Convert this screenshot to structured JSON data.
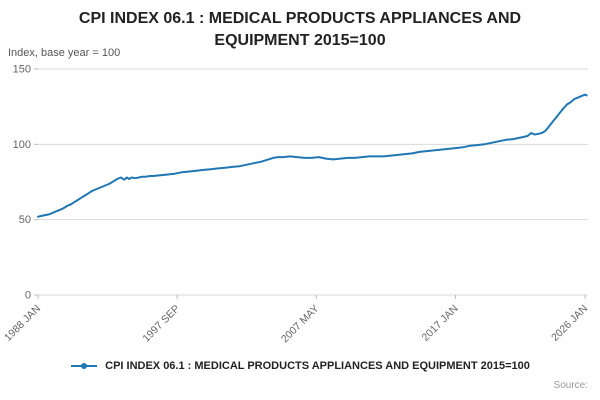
{
  "title": "CPI INDEX 06.1 : MEDICAL PRODUCTS APPLIANCES AND EQUIPMENT 2015=100",
  "axis_note": "Index, base year = 100",
  "legend_label": "CPI INDEX 06.1 : MEDICAL PRODUCTS APPLIANCES AND EQUIPMENT 2015=100",
  "source_label": "Source:",
  "colors": {
    "line": "#1f77b4",
    "grid": "#d9d9d9",
    "axis_text": "#666666",
    "title_text": "#222222"
  },
  "chart_data": {
    "type": "line",
    "title": "CPI INDEX 06.1 : MEDICAL PRODUCTS APPLIANCES AND EQUIPMENT 2015=100",
    "xlabel": "",
    "ylabel": "Index, base year = 100",
    "xlim": [
      1988.0,
      2026.2
    ],
    "ylim": [
      0,
      150
    ],
    "yticks": [
      0,
      50,
      100,
      150
    ],
    "xticks": [
      {
        "v": 1988.0,
        "label": "1988 JAN"
      },
      {
        "v": 1997.6667,
        "label": "1997 SEP"
      },
      {
        "v": 2007.3333,
        "label": "2007 MAY"
      },
      {
        "v": 2017.0,
        "label": "2017 JAN"
      },
      {
        "v": 2026.0,
        "label": "2026 JAN"
      }
    ],
    "grid": true,
    "legend_position": "bottom",
    "series": [
      {
        "name": "CPI INDEX 06.1 : MEDICAL PRODUCTS APPLIANCES AND EQUIPMENT 2015=100",
        "points": [
          [
            1988.0,
            52
          ],
          [
            1988.25,
            52.5
          ],
          [
            1988.5,
            53
          ],
          [
            1988.75,
            53.5
          ],
          [
            1989.0,
            54.5
          ],
          [
            1989.25,
            55.5
          ],
          [
            1989.5,
            56.5
          ],
          [
            1989.75,
            57.5
          ],
          [
            1990.0,
            59
          ],
          [
            1990.25,
            60
          ],
          [
            1990.5,
            61.5
          ],
          [
            1990.75,
            63
          ],
          [
            1991.0,
            64.5
          ],
          [
            1991.25,
            66
          ],
          [
            1991.5,
            67.5
          ],
          [
            1991.75,
            69
          ],
          [
            1992.0,
            70
          ],
          [
            1992.25,
            71
          ],
          [
            1992.5,
            72
          ],
          [
            1992.75,
            73
          ],
          [
            1993.0,
            74
          ],
          [
            1993.25,
            75.5
          ],
          [
            1993.5,
            77
          ],
          [
            1993.75,
            78
          ],
          [
            1994.0,
            76.5
          ],
          [
            1994.17,
            78
          ],
          [
            1994.33,
            77
          ],
          [
            1994.5,
            78
          ],
          [
            1994.75,
            77.5
          ],
          [
            1995.0,
            78
          ],
          [
            1995.25,
            78.5
          ],
          [
            1995.5,
            78.5
          ],
          [
            1995.75,
            79
          ],
          [
            1996.0,
            79
          ],
          [
            1996.5,
            79.5
          ],
          [
            1997.0,
            80
          ],
          [
            1997.5,
            80.5
          ],
          [
            1998.0,
            81.5
          ],
          [
            1998.5,
            82
          ],
          [
            1999.0,
            82.5
          ],
          [
            1999.5,
            83
          ],
          [
            2000.0,
            83.5
          ],
          [
            2000.5,
            84
          ],
          [
            2001.0,
            84.5
          ],
          [
            2001.5,
            85
          ],
          [
            2002.0,
            85.5
          ],
          [
            2002.5,
            86.5
          ],
          [
            2003.0,
            87.5
          ],
          [
            2003.5,
            88.5
          ],
          [
            2004.0,
            90
          ],
          [
            2004.33,
            91
          ],
          [
            2004.67,
            91.5
          ],
          [
            2005.0,
            91.5
          ],
          [
            2005.5,
            92
          ],
          [
            2006.0,
            91.5
          ],
          [
            2006.5,
            91
          ],
          [
            2007.0,
            91
          ],
          [
            2007.5,
            91.5
          ],
          [
            2008.0,
            90.5
          ],
          [
            2008.5,
            90
          ],
          [
            2009.0,
            90.5
          ],
          [
            2009.5,
            91
          ],
          [
            2010.0,
            91
          ],
          [
            2010.5,
            91.5
          ],
          [
            2011.0,
            92
          ],
          [
            2011.5,
            92
          ],
          [
            2012.0,
            92
          ],
          [
            2012.5,
            92.5
          ],
          [
            2013.0,
            93
          ],
          [
            2013.5,
            93.5
          ],
          [
            2014.0,
            94
          ],
          [
            2014.5,
            95
          ],
          [
            2015.0,
            95.5
          ],
          [
            2015.5,
            96
          ],
          [
            2016.0,
            96.5
          ],
          [
            2016.5,
            97
          ],
          [
            2017.0,
            97.5
          ],
          [
            2017.5,
            98
          ],
          [
            2018.0,
            99
          ],
          [
            2018.5,
            99.5
          ],
          [
            2019.0,
            100
          ],
          [
            2019.5,
            101
          ],
          [
            2020.0,
            102
          ],
          [
            2020.5,
            103
          ],
          [
            2021.0,
            103.5
          ],
          [
            2021.5,
            104.5
          ],
          [
            2022.0,
            105.5
          ],
          [
            2022.25,
            107.5
          ],
          [
            2022.5,
            106.5
          ],
          [
            2022.75,
            107
          ],
          [
            2023.0,
            107.5
          ],
          [
            2023.25,
            109
          ],
          [
            2023.5,
            112
          ],
          [
            2023.75,
            115
          ],
          [
            2024.0,
            118
          ],
          [
            2024.25,
            121
          ],
          [
            2024.5,
            124
          ],
          [
            2024.75,
            126.5
          ],
          [
            2025.0,
            128
          ],
          [
            2025.25,
            130
          ],
          [
            2025.5,
            131
          ],
          [
            2025.75,
            132
          ],
          [
            2026.0,
            133
          ],
          [
            2026.1,
            132.5
          ]
        ]
      }
    ]
  }
}
